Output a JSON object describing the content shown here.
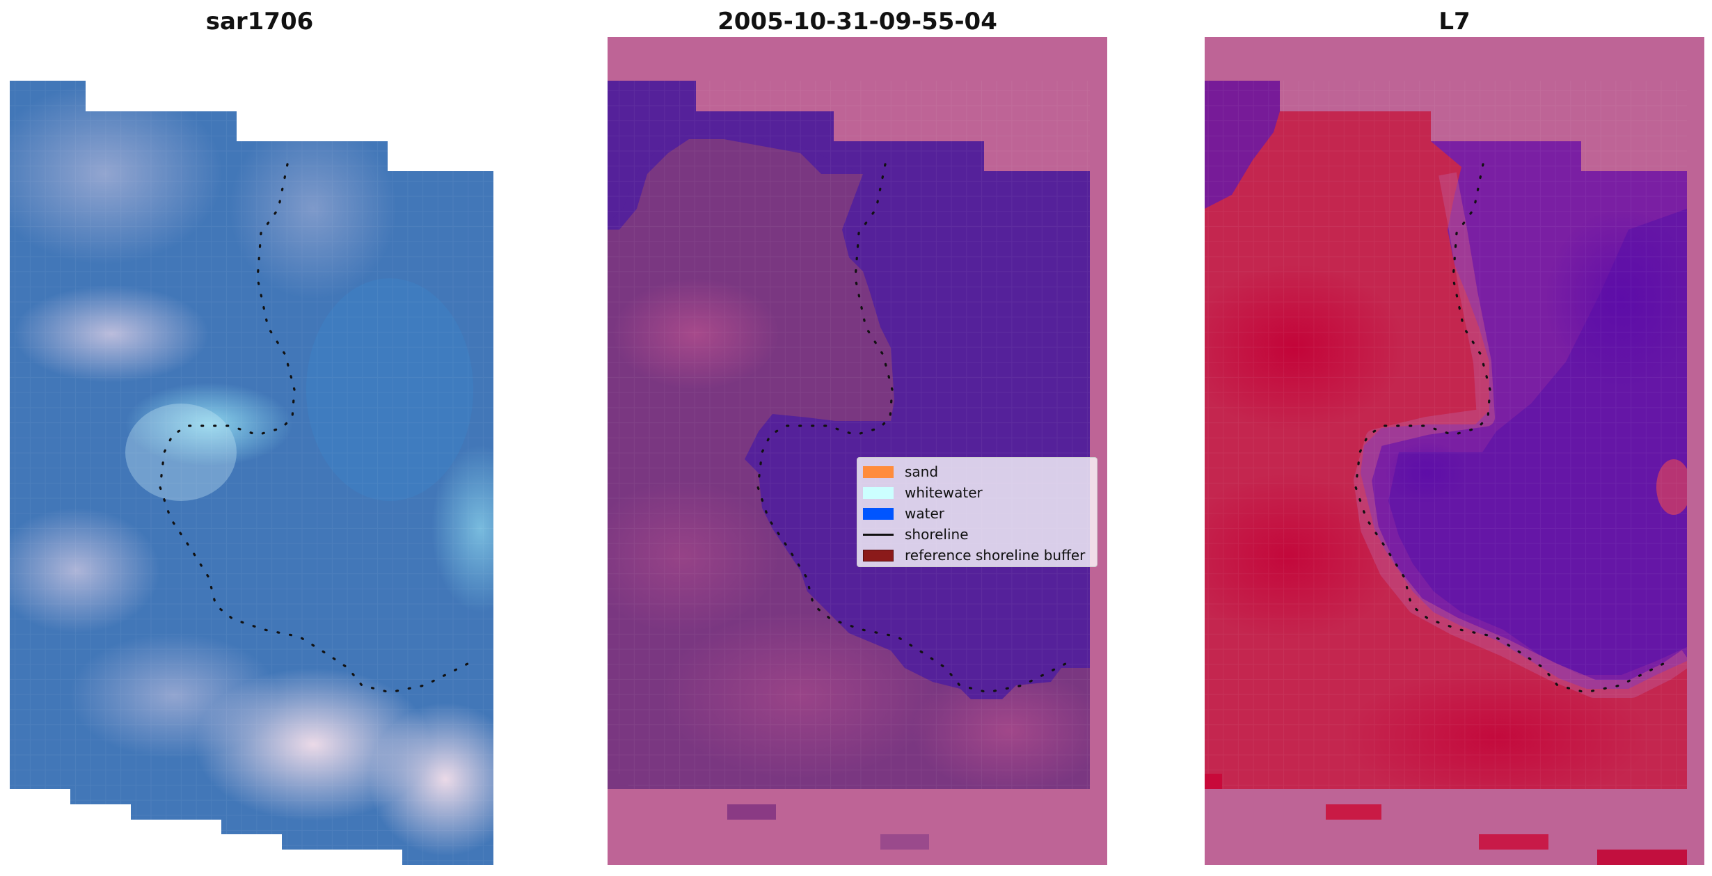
{
  "panels": [
    {
      "title": "sar1706",
      "kind": "rgb"
    },
    {
      "title": "2005-10-31-09-55-04",
      "kind": "classified"
    },
    {
      "title": "L7",
      "kind": "index"
    }
  ],
  "legend": {
    "items": [
      {
        "label": "sand",
        "color": "#ff8c3c",
        "type": "patch"
      },
      {
        "label": "whitewater",
        "color": "#ccffff",
        "type": "patch"
      },
      {
        "label": "water",
        "color": "#0055ff",
        "type": "patch"
      },
      {
        "label": "shoreline",
        "color": "#111111",
        "type": "line"
      },
      {
        "label": "reference shoreline buffer",
        "color": "#8b1a1a",
        "type": "patch"
      }
    ]
  },
  "colors": {
    "rgb_water": "#3f79bd",
    "rgb_light": "#a9c2e0",
    "rgb_pink": "#dcc4d8",
    "classified_water": "#55219a",
    "classified_land": "#7a3781",
    "classified_nodata": "#be6496",
    "index_land": "#c21d4d",
    "index_water": "#6516a6",
    "index_nodata": "#be6496",
    "shoreline_dots": "#111111"
  }
}
